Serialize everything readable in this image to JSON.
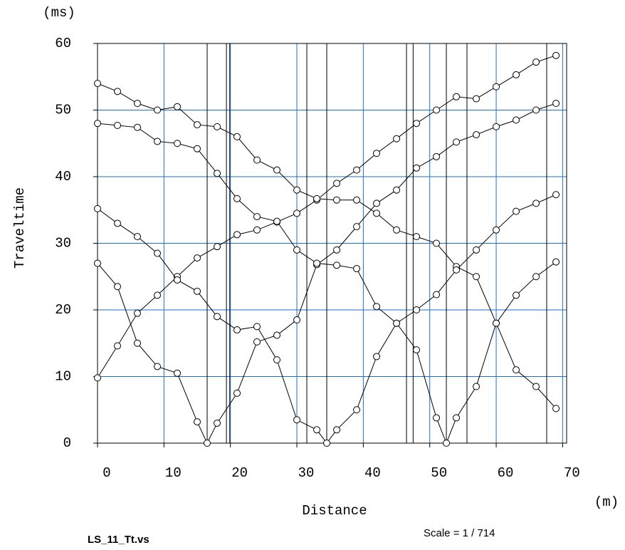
{
  "chart_data": {
    "type": "line",
    "y_unit": "(ms)",
    "x_unit": "(m)",
    "ylabel": "Traveltime",
    "xlabel": "Distance",
    "file_name": "LS_11_Tt.vs",
    "scale": "Scale = 1 / 714",
    "xlim": [
      0,
      70.6
    ],
    "ylim": [
      0,
      60
    ],
    "xticks": [
      0,
      10,
      20,
      30,
      40,
      50,
      60,
      70
    ],
    "yticks": [
      0,
      10,
      20,
      30,
      40,
      50,
      60
    ],
    "grid": true,
    "grid_color": "#1f6fc5",
    "vlines": [
      16.5,
      19.4,
      19.9,
      31.5,
      34.5,
      46.5,
      47.5,
      52.5,
      55.6,
      67.6
    ],
    "series": [
      {
        "color": "#000000",
        "x": [
          0,
          3,
          6,
          9,
          12,
          15,
          18,
          21,
          24,
          27,
          30,
          33,
          36,
          39,
          42,
          45,
          48,
          51,
          54,
          57,
          60,
          63,
          66,
          69
        ],
        "values": [
          9.8,
          14.6,
          19.5,
          22.2,
          25,
          27.8,
          29.5,
          31.3,
          32,
          33.2,
          34.5,
          36.5,
          39,
          41,
          43.5,
          45.7,
          48,
          50,
          52,
          51.7,
          53.5,
          55.3,
          57.2,
          58.2
        ]
      },
      {
        "color": "#000000",
        "x": [
          0,
          3,
          6,
          9,
          12,
          15,
          18,
          21,
          24,
          27,
          30,
          33,
          36,
          39,
          42,
          45,
          48,
          51,
          54,
          57,
          60,
          63,
          66,
          69
        ],
        "values": [
          54,
          52.8,
          51,
          50,
          50.5,
          47.8,
          47.5,
          46,
          42.5,
          41,
          38,
          36.7,
          36.5,
          36.5,
          34.5,
          32,
          31,
          30,
          26.5,
          25,
          18,
          11,
          8.5,
          5.2
        ]
      },
      {
        "color": "#000000",
        "x": [
          0,
          3,
          6,
          9,
          12,
          15,
          16.5,
          18,
          21,
          24,
          27,
          30,
          33,
          36,
          39,
          42,
          45,
          48,
          51,
          54,
          57,
          60,
          63,
          66,
          69
        ],
        "values": [
          27,
          23.5,
          15,
          11.5,
          10.5,
          3.2,
          0,
          3,
          7.5,
          15.2,
          16.2,
          18.5,
          26.8,
          29,
          32.5,
          36,
          38,
          41.3,
          43,
          45.2,
          46.3,
          47.5,
          48.5,
          50,
          51
        ]
      },
      {
        "color": "#000000",
        "x": [
          0,
          3,
          6,
          9,
          12,
          15,
          18,
          21,
          24,
          27,
          30,
          33,
          34.5,
          36,
          39,
          42,
          45,
          48,
          51,
          54,
          57,
          60,
          63,
          66,
          69
        ],
        "values": [
          35.2,
          33,
          31,
          28.5,
          24.5,
          22.8,
          19,
          17,
          17.5,
          12.5,
          3.5,
          2,
          0,
          2,
          5,
          13,
          18,
          20,
          22.3,
          26,
          29,
          32,
          34.8,
          36,
          37.3
        ]
      },
      {
        "color": "#000000",
        "x": [
          0,
          3,
          6,
          9,
          12,
          15,
          18,
          21,
          24,
          27,
          30,
          33,
          36,
          39,
          42,
          45,
          48,
          51,
          52.5,
          54,
          57,
          60,
          63,
          66,
          69
        ],
        "values": [
          48,
          47.7,
          47.4,
          45.3,
          45,
          44.2,
          40.5,
          36.7,
          34,
          33.3,
          29,
          27,
          26.7,
          26.2,
          20.5,
          18,
          14,
          3.8,
          0,
          3.8,
          8.5,
          18,
          22.2,
          25,
          27.2
        ]
      }
    ]
  }
}
